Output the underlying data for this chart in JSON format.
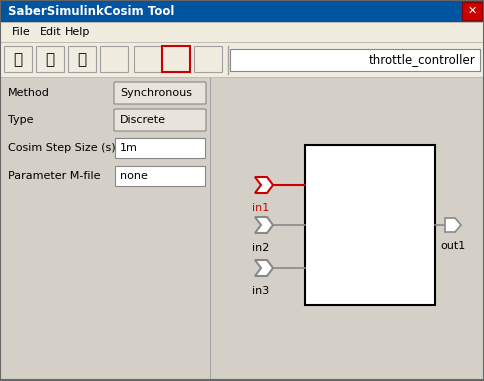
{
  "title": "SaberSimulinkCosim Tool",
  "bg_color": "#d4d0c8",
  "window_bg": "#d4d0c8",
  "content_bg": "#d4d0c8",
  "menubar_items": [
    "File",
    "Edit",
    "Help"
  ],
  "toolbar_text": "throttle_controller",
  "form_labels": [
    "Method",
    "Type",
    "Cosim Step Size (s)",
    "Parameter M-file"
  ],
  "form_values": [
    "Synchronous",
    "Discrete",
    "1m",
    "none"
  ],
  "port_labels": [
    "in1",
    "in2",
    "in3"
  ],
  "out_labels": [
    "out1"
  ],
  "in1_color": "#cc0000",
  "in23_color": "#888888",
  "out_color": "#888888",
  "box_color": "#000000",
  "wire_color_in1": "#cc0000",
  "wire_color_in23": "#888888",
  "wire_color_out": "#888888"
}
